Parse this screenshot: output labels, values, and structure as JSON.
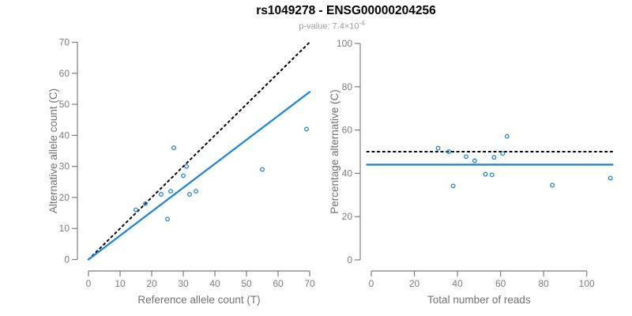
{
  "title": "rs1049278 - ENSG00000204256",
  "subtitle": {
    "prefix": "p-value: 7.4×10",
    "exponent": "-4"
  },
  "colors": {
    "accent_blue": "#1E87DB",
    "dashed_black": "#000000",
    "axis_gray": "#7E7E7E",
    "label_gray": "#737373",
    "subtitle_gray": "#9C9C9C"
  },
  "chart_data": [
    {
      "type": "scatter",
      "name": "allele-counts",
      "xlabel": "Reference allele count (T)",
      "ylabel": "Alternative allele count (C)",
      "xlim": [
        0,
        70
      ],
      "ylim": [
        0,
        70
      ],
      "xticks": [
        0,
        10,
        20,
        30,
        40,
        50,
        60,
        70
      ],
      "yticks": [
        0,
        10,
        20,
        30,
        40,
        50,
        60,
        70
      ],
      "grid": false,
      "points": [
        [
          15,
          16
        ],
        [
          18,
          18
        ],
        [
          23,
          21
        ],
        [
          25,
          13
        ],
        [
          26,
          22
        ],
        [
          27,
          36
        ],
        [
          30,
          27
        ],
        [
          31,
          30
        ],
        [
          32,
          21
        ],
        [
          34,
          22
        ],
        [
          55,
          29
        ],
        [
          69,
          42
        ]
      ],
      "lines": [
        {
          "name": "identity-line",
          "style": "dotted",
          "color": "dashed_black",
          "x1": 0,
          "y1": 0,
          "x2": 70,
          "y2": 70
        },
        {
          "name": "fit-line",
          "style": "solid",
          "color": "accent_blue",
          "x1": 0,
          "y1": 0,
          "x2": 70,
          "y2": 54
        }
      ]
    },
    {
      "type": "scatter",
      "name": "percentage-alternative",
      "xlabel": "Total number of reads",
      "ylabel": "Percentage alternative (C)",
      "xlim": [
        0,
        113
      ],
      "ylim": [
        0,
        100
      ],
      "xticks": [
        0,
        20,
        40,
        60,
        80,
        100
      ],
      "yticks": [
        0,
        20,
        40,
        60,
        80,
        100
      ],
      "grid": false,
      "points": [
        [
          31,
          51.6
        ],
        [
          36,
          50.0
        ],
        [
          38,
          34.2
        ],
        [
          44,
          47.7
        ],
        [
          48,
          45.8
        ],
        [
          53,
          39.6
        ],
        [
          56,
          39.3
        ],
        [
          57,
          47.4
        ],
        [
          61,
          49.2
        ],
        [
          63,
          57.1
        ],
        [
          84,
          34.5
        ],
        [
          111,
          37.8
        ]
      ],
      "lines": [
        {
          "name": "expected-50pct-line",
          "style": "dotted",
          "color": "dashed_black",
          "x1": -2,
          "y1": 50,
          "x2": 112,
          "y2": 50
        },
        {
          "name": "mean-percentage-line",
          "style": "solid",
          "color": "accent_blue",
          "x1": -2,
          "y1": 44,
          "x2": 112,
          "y2": 44
        }
      ]
    }
  ]
}
